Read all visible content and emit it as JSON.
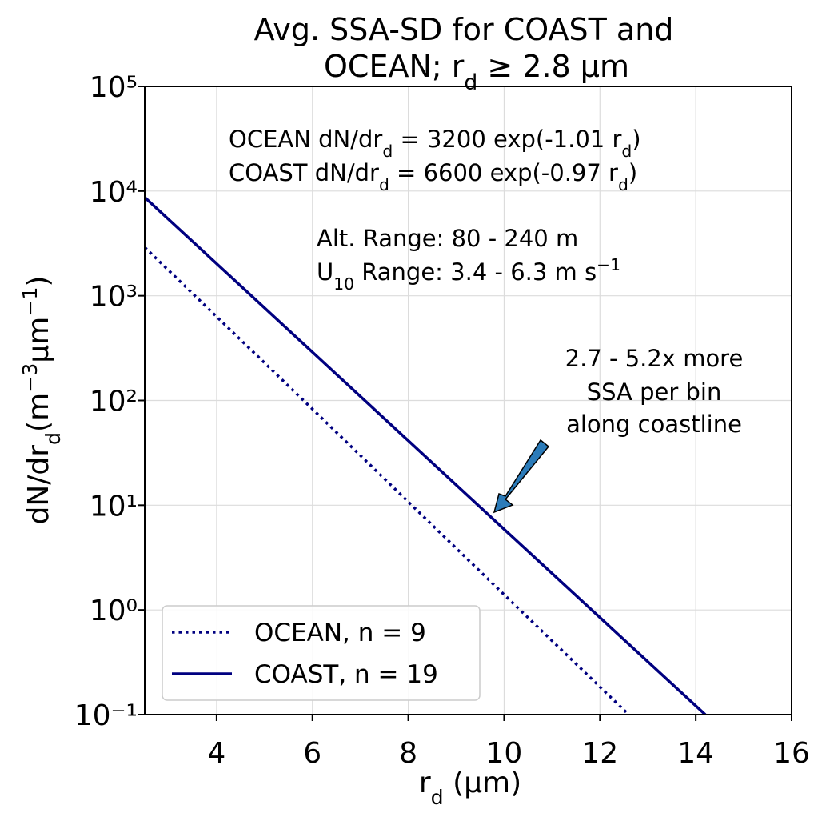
{
  "chart_data": {
    "type": "line",
    "title": [
      [
        {
          "text": "Avg. SSA-SD for COAST and"
        }
      ],
      [
        {
          "text": "OCEAN; r"
        },
        {
          "text": "d",
          "shift": "sub"
        },
        {
          "text": " ≥ 2.8 μm"
        }
      ]
    ],
    "x_label": [
      {
        "text": "r"
      },
      {
        "text": "d",
        "shift": "sub"
      },
      {
        "text": " (μm)"
      }
    ],
    "y_label": [
      {
        "text": "dN/dr"
      },
      {
        "text": "d",
        "shift": "sub"
      },
      {
        "text": "(m"
      },
      {
        "text": "−3",
        "shift": "sup"
      },
      {
        "text": "μm"
      },
      {
        "text": "−1",
        "shift": "sup"
      },
      {
        "text": ")"
      }
    ],
    "xlim": [
      2.5,
      16
    ],
    "ylim": [
      0.1,
      100000
    ],
    "log_y": true,
    "xticks": [
      4,
      6,
      8,
      10,
      12,
      14,
      16
    ],
    "yticks": [
      {
        "value": 0.1,
        "label": "10⁻¹"
      },
      {
        "value": 1,
        "label": "10⁰"
      },
      {
        "value": 10,
        "label": "10¹"
      },
      {
        "value": 100,
        "label": "10²"
      },
      {
        "value": 1000,
        "label": "10³"
      },
      {
        "value": 10000,
        "label": "10⁴"
      },
      {
        "value": 100000,
        "label": "10⁵"
      }
    ],
    "grid": true,
    "legend": "lower left",
    "series": [
      {
        "name": "OCEAN, n = 9",
        "color": "#000080",
        "linestyle": "dotted",
        "x": [
          2.5,
          6,
          10,
          12.6
        ],
        "values": [
          2900,
          83,
          1.4,
          0.1
        ]
      },
      {
        "name": "COAST, n = 19",
        "color": "#000080",
        "linestyle": "solid",
        "x": [
          2.5,
          6,
          10,
          14.2
        ],
        "values": [
          8700,
          290,
          5.9,
          0.1
        ]
      }
    ],
    "annotations": [
      {
        "lines": [
          [
            {
              "text": "OCEAN dN/dr"
            },
            {
              "text": "d",
              "shift": "sub"
            },
            {
              "text": " = 3200 exp(-1.01 r"
            },
            {
              "text": "d",
              "shift": "sub"
            },
            {
              "text": ")"
            }
          ],
          [
            {
              "text": "COAST dN/dr"
            },
            {
              "text": "d",
              "shift": "sub"
            },
            {
              "text": " = 6600 exp(-0.97 r"
            },
            {
              "text": "d",
              "shift": "sub"
            },
            {
              "text": ")"
            }
          ]
        ]
      },
      {
        "lines": [
          [
            {
              "text": "Alt. Range: 80 - 240 m"
            }
          ],
          [
            {
              "text": "U"
            },
            {
              "text": "10",
              "shift": "sub"
            },
            {
              "text": " Range: 3.4 - 6.3 m s"
            },
            {
              "text": "−1",
              "shift": "sup"
            }
          ]
        ]
      },
      {
        "lines": [
          [
            {
              "text": "2.7 - 5.2x more"
            }
          ],
          [
            {
              "text": "SSA per bin"
            }
          ],
          [
            {
              "text": "along coastline"
            }
          ]
        ]
      }
    ]
  }
}
